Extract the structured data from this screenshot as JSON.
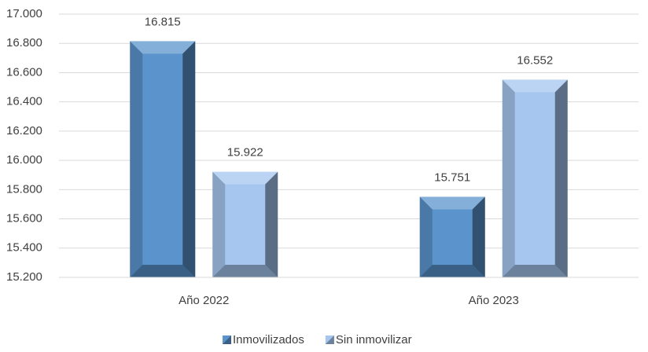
{
  "chart_data": {
    "type": "bar",
    "categories": [
      "Año 2022",
      "Año 2023"
    ],
    "series": [
      {
        "name": "Inmovilizados",
        "color": "#5b94cc",
        "values": [
          16815,
          15751
        ],
        "value_labels": [
          "16.815",
          "15.751"
        ]
      },
      {
        "name": "Sin inmovilizar",
        "color": "#a6c6f0",
        "values": [
          15922,
          16552
        ],
        "value_labels": [
          "15.922",
          "16.552"
        ]
      }
    ],
    "ylim": [
      15200,
      17000
    ],
    "yticks": [
      {
        "value": 15200,
        "label": "15.200"
      },
      {
        "value": 15400,
        "label": "15.400"
      },
      {
        "value": 15600,
        "label": "15.600"
      },
      {
        "value": 15800,
        "label": "15.800"
      },
      {
        "value": 16000,
        "label": "16.000"
      },
      {
        "value": 16200,
        "label": "16.200"
      },
      {
        "value": 16400,
        "label": "16.400"
      },
      {
        "value": 16600,
        "label": "16.600"
      },
      {
        "value": 16800,
        "label": "16.800"
      },
      {
        "value": 17000,
        "label": "17.000"
      }
    ],
    "grid": true,
    "legend": "bottom"
  }
}
